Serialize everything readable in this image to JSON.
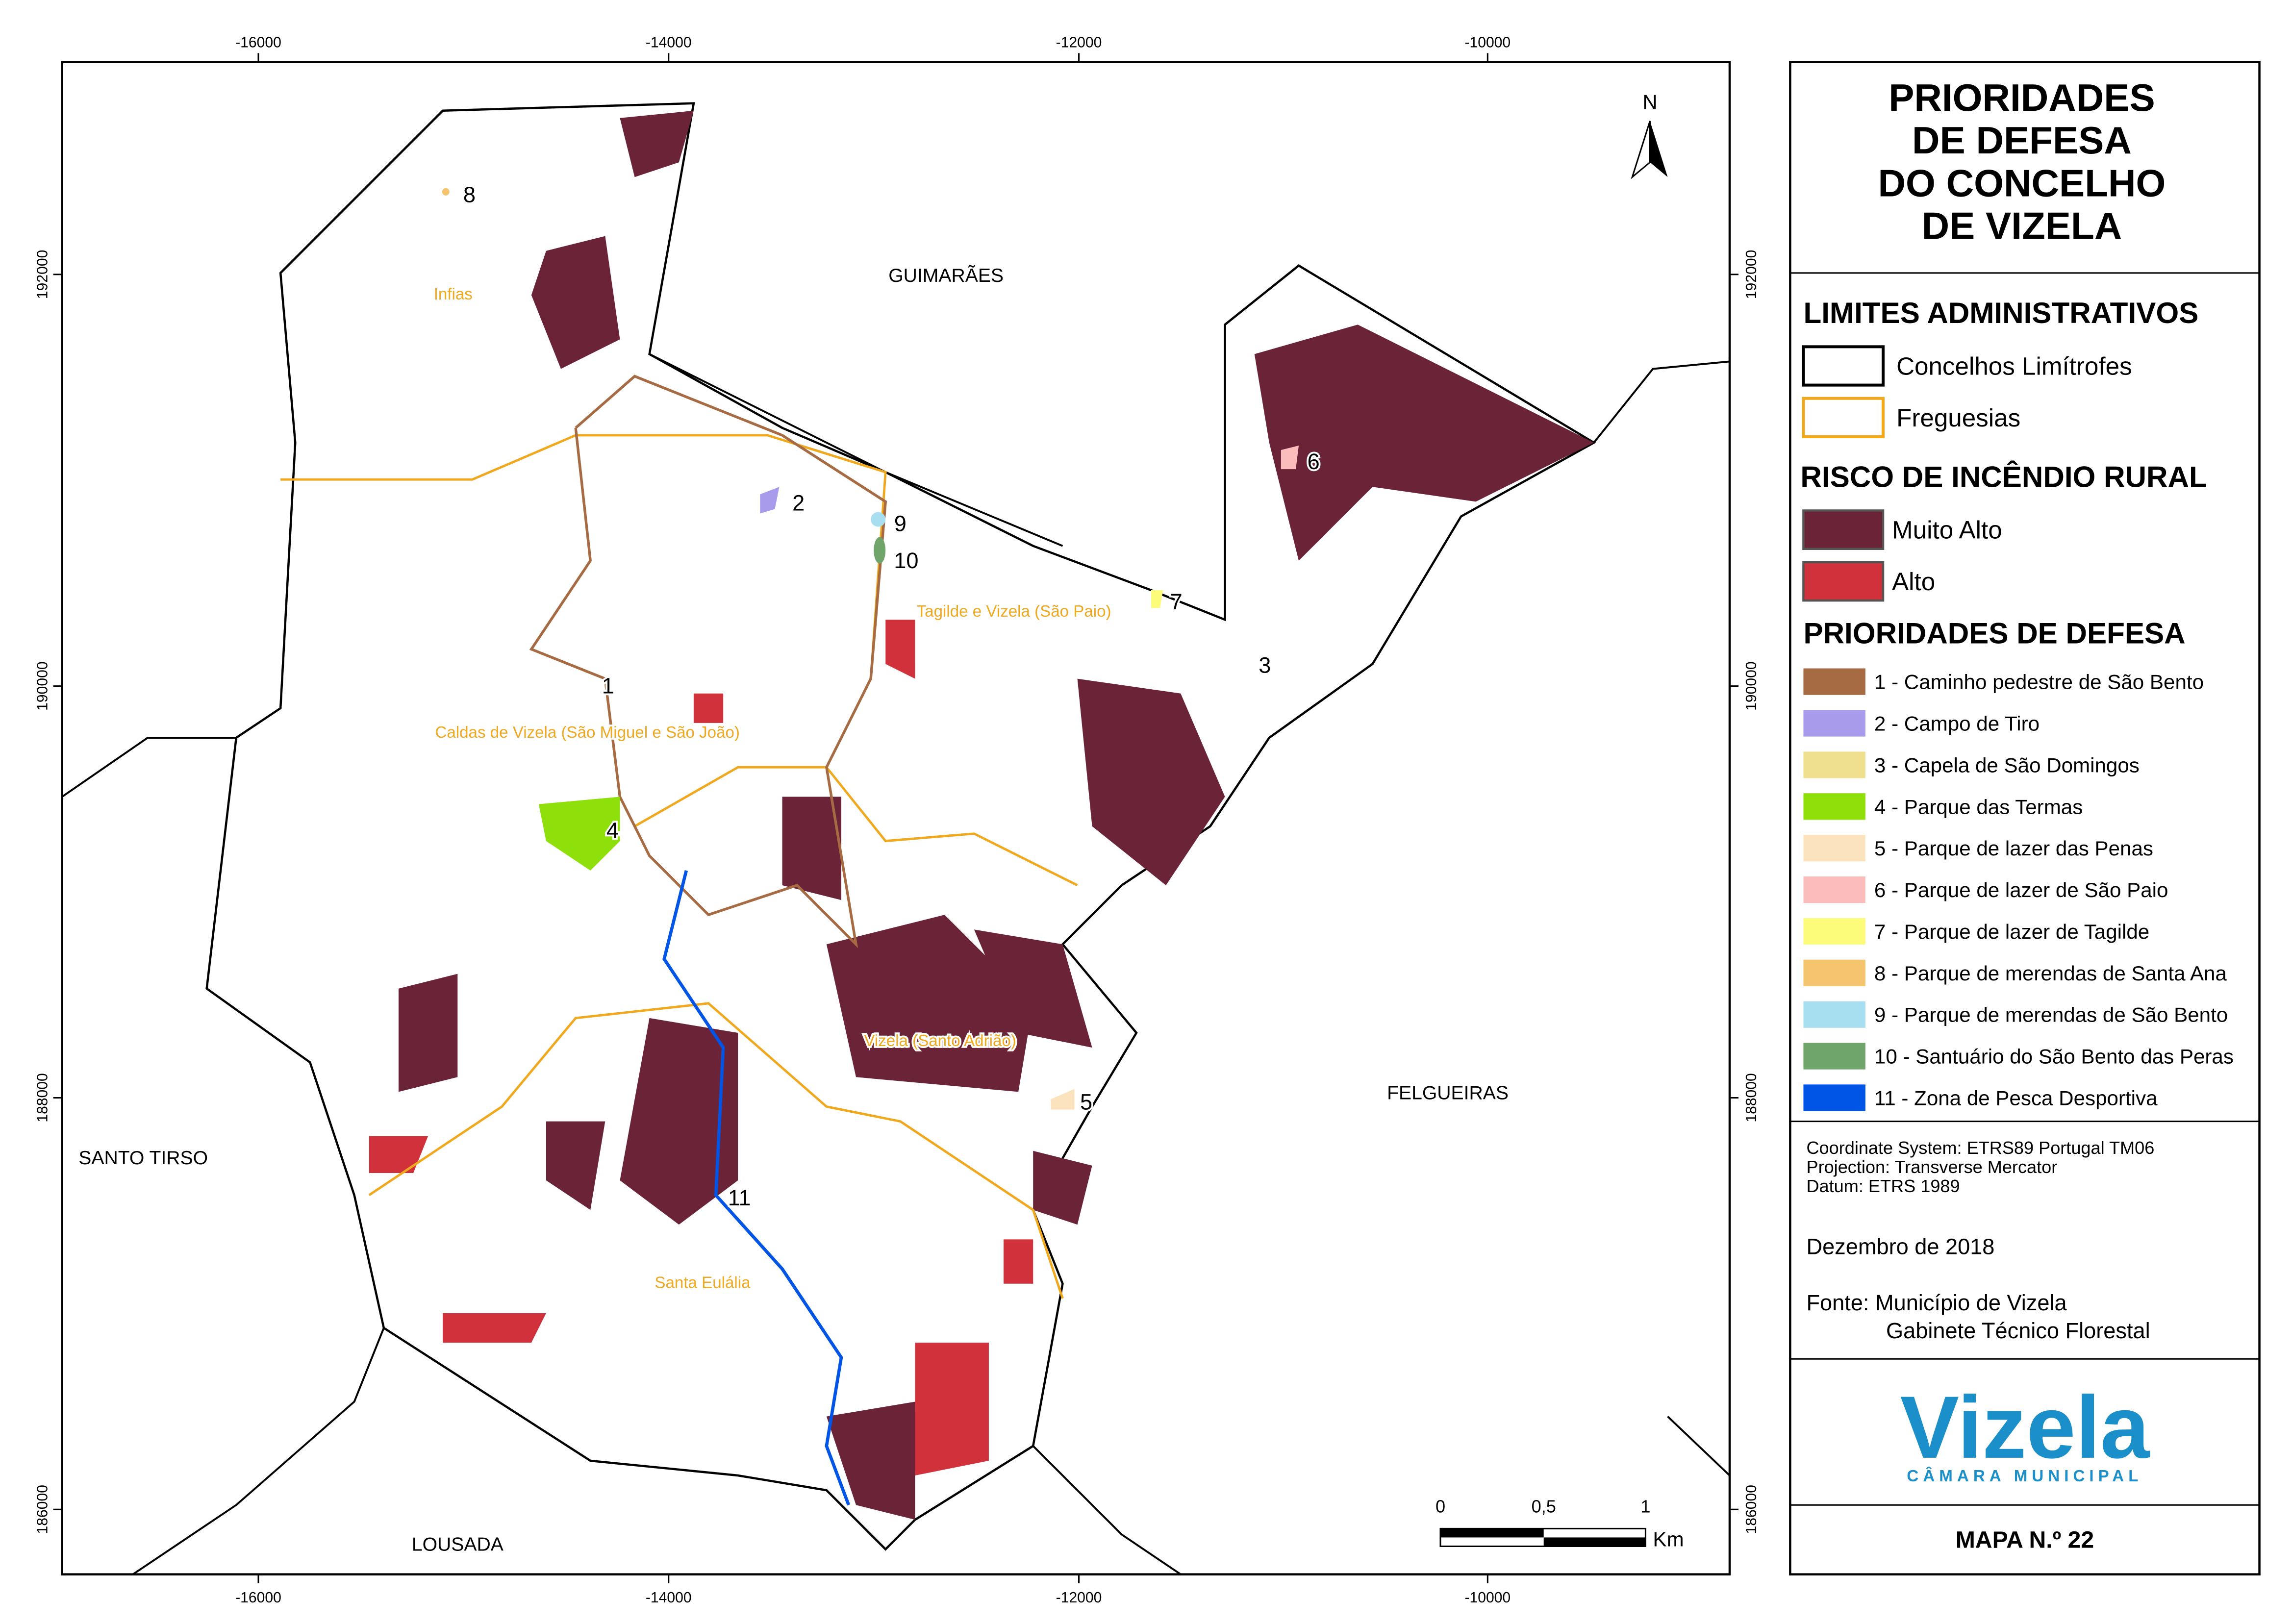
{
  "title_lines": [
    "PRIORIDADES",
    "DE DEFESA",
    "DO CONCELHO",
    "DE VIZELA"
  ],
  "legend": {
    "admin": {
      "heading": "LIMITES ADMINISTRATIVOS",
      "items": [
        {
          "label": "Concelhos Limítrofes",
          "color": "#000000"
        },
        {
          "label": "Freguesias",
          "color": "#f0a81e"
        }
      ]
    },
    "risk": {
      "heading": "RISCO DE INCÊNDIO RURAL",
      "items": [
        {
          "label": "Muito Alto",
          "color": "#6b2338"
        },
        {
          "label": "Alto",
          "color": "#d1313a"
        }
      ]
    },
    "priorities": {
      "heading": "PRIORIDADES DE DEFESA",
      "items": [
        {
          "label": "1 - Caminho pedestre de São Bento",
          "color": "#a66b43"
        },
        {
          "label": "2 - Campo de Tiro",
          "color": "#a99bec"
        },
        {
          "label": "3 - Capela de São Domingos",
          "color": "#efe08f"
        },
        {
          "label": "4 - Parque das Termas",
          "color": "#8fe00a"
        },
        {
          "label": "5 - Parque de lazer das Penas",
          "color": "#fbe3bd"
        },
        {
          "label": "6 - Parque de lazer de São Paio",
          "color": "#fbbcbc"
        },
        {
          "label": "7 - Parque de lazer de Tagilde",
          "color": "#fcfc7a"
        },
        {
          "label": "8 - Parque de merendas de Santa Ana",
          "color": "#f5c46f"
        },
        {
          "label": "9 - Parque de merendas de São Bento",
          "color": "#a7def0"
        },
        {
          "label": "10 - Santuário do São Bento das Peras",
          "color": "#6fa56b"
        },
        {
          "label": "11 - Zona de Pesca Desportiva",
          "color": "#0055e6"
        }
      ]
    }
  },
  "metadata": [
    "Coordinate System: ETRS89 Portugal TM06",
    "Projection: Transverse Mercator",
    "Datum: ETRS 1989"
  ],
  "date": "Dezembro de 2018",
  "source": [
    "Fonte: Município de Vizela",
    "Gabinete Técnico Florestal"
  ],
  "logo": {
    "name": "Vizela",
    "subtitle": "CÂMARA MUNICIPAL"
  },
  "map_number": "MAPA N.º 22",
  "map": {
    "x_ticks": [
      "-16000",
      "-14000",
      "-12000",
      "-10000"
    ],
    "y_ticks": [
      "192000",
      "190000",
      "188000",
      "186000"
    ],
    "north": "N",
    "scale": {
      "labels": [
        "0",
        "0,5",
        "1"
      ],
      "unit": "Km"
    },
    "municipalities": [
      "GUIMARÃES",
      "FELGUEIRAS",
      "SANTO TIRSO",
      "LOUSADA"
    ],
    "parishes": [
      "Infias",
      "Tagilde e Vizela (São Paio)",
      "Caldas de Vizela (São Miguel e São João)",
      "Vizela (Santo Adrião)",
      "Santa Eulália"
    ],
    "point_labels": [
      "1",
      "2",
      "3",
      "4",
      "5",
      "6",
      "7",
      "8",
      "9",
      "10",
      "11"
    ]
  }
}
